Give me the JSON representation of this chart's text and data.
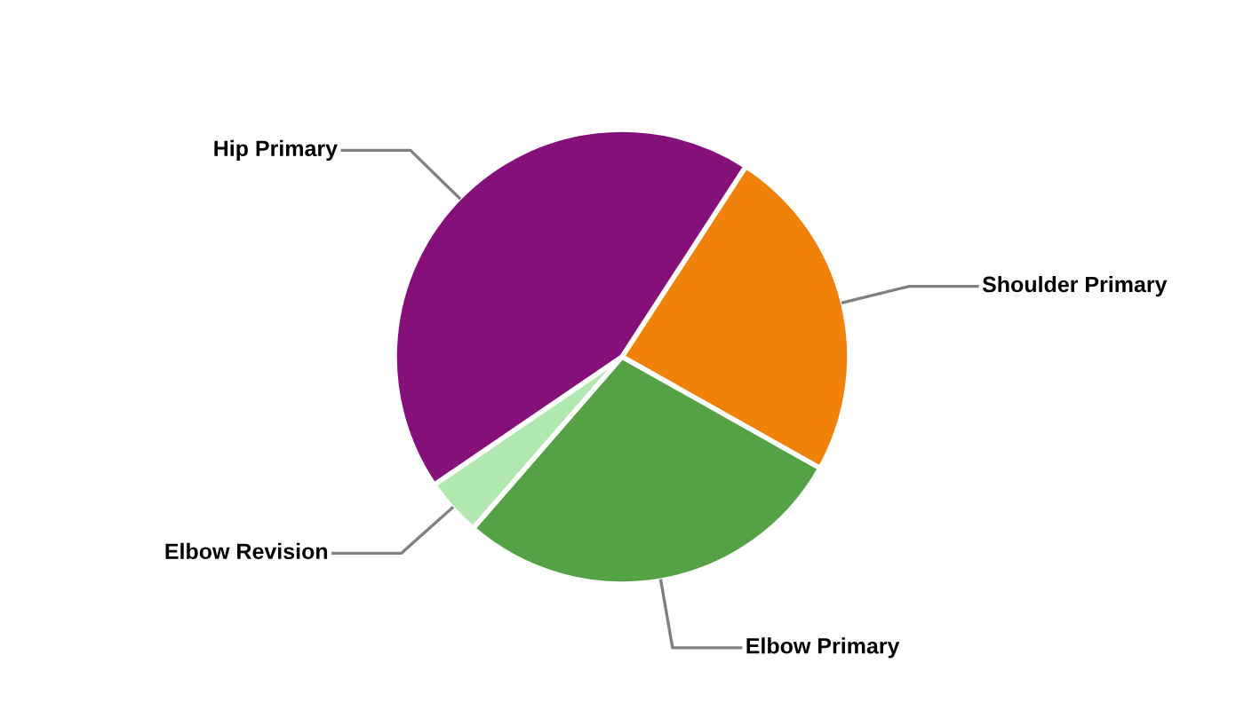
{
  "chart_data": {
    "type": "pie",
    "categories": [
      "Shoulder Primary",
      "Elbow Primary",
      "Elbow Revision",
      "Hip Primary"
    ],
    "values": [
      24.0,
      28.2,
      4.1,
      43.7
    ],
    "colors": [
      "#f0820a",
      "#55a145",
      "#b0e8b0",
      "#85107a"
    ],
    "legend": false
  }
}
